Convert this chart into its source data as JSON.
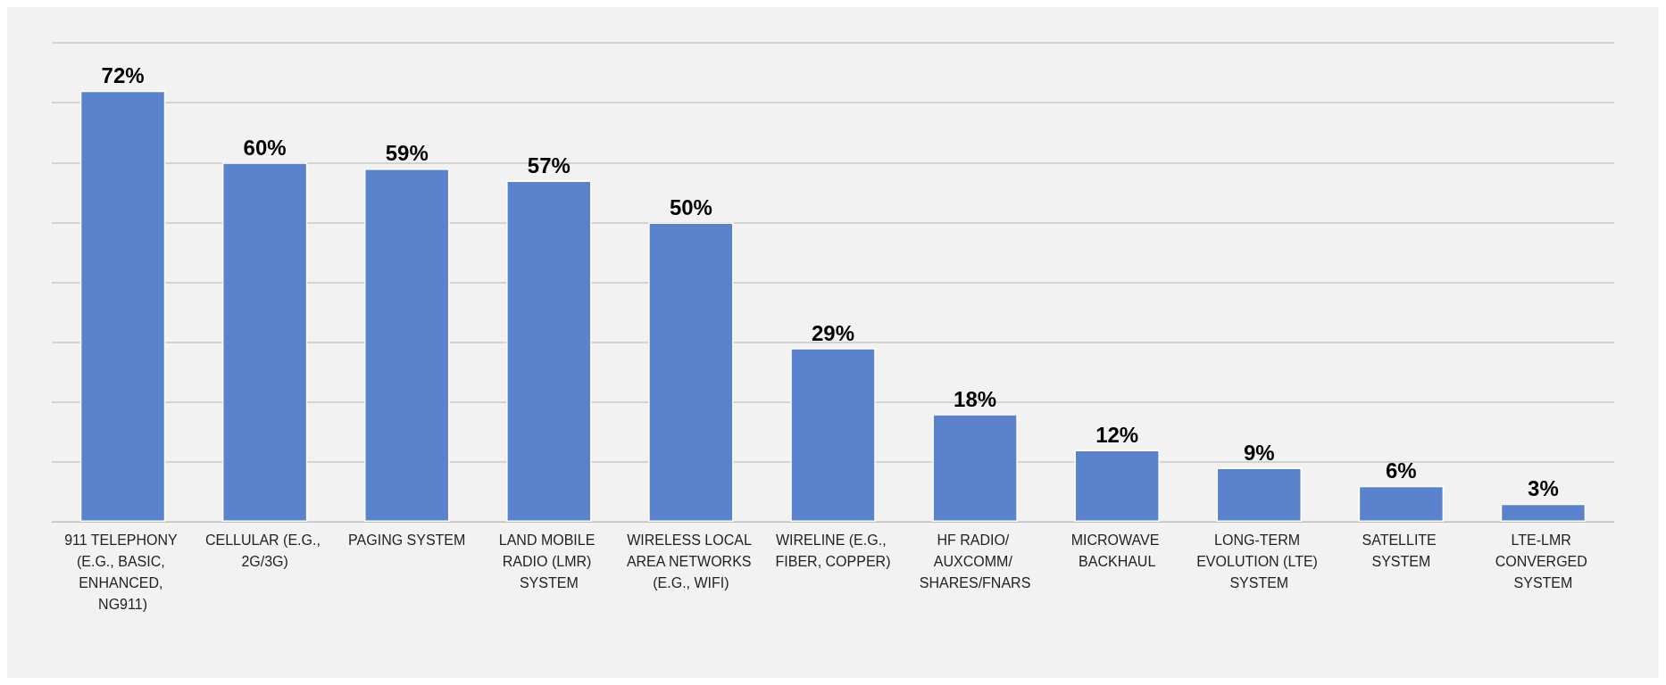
{
  "chart_data": {
    "type": "bar",
    "categories": [
      "911 TELEPHONY (E.G., BASIC, ENHANCED, NG911)",
      "CELLULAR (E.G., 2G/3G)",
      "PAGING SYSTEM",
      "LAND MOBILE RADIO (LMR) SYSTEM",
      "WIRELESS LOCAL AREA NETWORKS (E.G., WIFI)",
      "WIRELINE (E.G., FIBER, COPPER)",
      "HF RADIO/ AUXCOMM/ SHARES/FNARS",
      "MICROWAVE BACKHAUL",
      "LONG-TERM EVOLUTION (LTE) SYSTEM",
      "SATELLITE SYSTEM",
      "LTE-LMR CONVERGED SYSTEM"
    ],
    "values": [
      72,
      60,
      59,
      57,
      50,
      29,
      18,
      12,
      9,
      6,
      3
    ],
    "value_labels": [
      "72%",
      "60%",
      "59%",
      "57%",
      "50%",
      "29%",
      "18%",
      "12%",
      "9%",
      "6%",
      "3%"
    ],
    "color": "#5b83cd",
    "ylim": [
      0,
      80
    ],
    "yticks": [
      {
        "value": 0,
        "label": null
      },
      {
        "value": 10,
        "label": null
      },
      {
        "value": 20,
        "label": null
      },
      {
        "value": 30,
        "label": null
      },
      {
        "value": 40,
        "label": null
      },
      {
        "value": 50,
        "label": null
      },
      {
        "value": 60,
        "label": null
      },
      {
        "value": 70,
        "label": null
      },
      {
        "value": 80,
        "label": null
      }
    ],
    "tick_labels": "x",
    "grid": "y"
  }
}
